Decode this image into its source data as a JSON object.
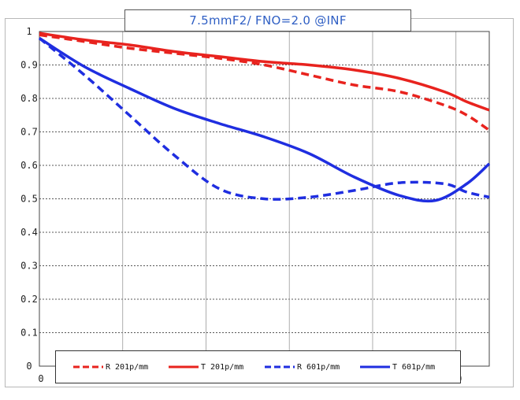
{
  "chart_data": {
    "type": "line",
    "title": "7.5mmF2/ FNO=2.0  @INF",
    "ylim": [
      0,
      1
    ],
    "y_ticks": [
      "0",
      "0.1",
      "0.2",
      "0.3",
      "0.4",
      "0.5",
      "0.6",
      "0.7",
      "0.8",
      "0.9",
      "1"
    ],
    "x_tick_labels": [
      "0",
      "0"
    ],
    "grid": true,
    "legend_position": "bottom",
    "series": [
      {
        "name": "R 201p/mm",
        "color": "#e8231e",
        "dashed": true,
        "points": [
          [
            0,
            0.99
          ],
          [
            0.1,
            0.97
          ],
          [
            0.2,
            0.95
          ],
          [
            0.3,
            0.935
          ],
          [
            0.4,
            0.92
          ],
          [
            0.5,
            0.9
          ],
          [
            0.6,
            0.87
          ],
          [
            0.7,
            0.84
          ],
          [
            0.8,
            0.82
          ],
          [
            0.9,
            0.78
          ],
          [
            0.95,
            0.75
          ],
          [
            1.0,
            0.705
          ]
        ]
      },
      {
        "name": "T 201p/mm",
        "color": "#e8231e",
        "dashed": false,
        "points": [
          [
            0,
            0.995
          ],
          [
            0.1,
            0.975
          ],
          [
            0.2,
            0.96
          ],
          [
            0.3,
            0.94
          ],
          [
            0.4,
            0.925
          ],
          [
            0.5,
            0.91
          ],
          [
            0.6,
            0.9
          ],
          [
            0.7,
            0.885
          ],
          [
            0.8,
            0.86
          ],
          [
            0.9,
            0.82
          ],
          [
            0.95,
            0.79
          ],
          [
            1.0,
            0.765
          ]
        ]
      },
      {
        "name": "R 601p/mm",
        "color": "#1f2ee0",
        "dashed": true,
        "points": [
          [
            0,
            0.98
          ],
          [
            0.1,
            0.87
          ],
          [
            0.2,
            0.75
          ],
          [
            0.3,
            0.63
          ],
          [
            0.4,
            0.53
          ],
          [
            0.5,
            0.5
          ],
          [
            0.6,
            0.505
          ],
          [
            0.7,
            0.525
          ],
          [
            0.8,
            0.548
          ],
          [
            0.9,
            0.545
          ],
          [
            0.95,
            0.52
          ],
          [
            1.0,
            0.505
          ]
        ]
      },
      {
        "name": "T 601p/mm",
        "color": "#1f2ee0",
        "dashed": false,
        "points": [
          [
            0,
            0.98
          ],
          [
            0.1,
            0.895
          ],
          [
            0.2,
            0.83
          ],
          [
            0.3,
            0.77
          ],
          [
            0.4,
            0.725
          ],
          [
            0.5,
            0.685
          ],
          [
            0.6,
            0.635
          ],
          [
            0.7,
            0.565
          ],
          [
            0.8,
            0.51
          ],
          [
            0.88,
            0.495
          ],
          [
            0.95,
            0.545
          ],
          [
            1.0,
            0.605
          ]
        ]
      }
    ]
  }
}
